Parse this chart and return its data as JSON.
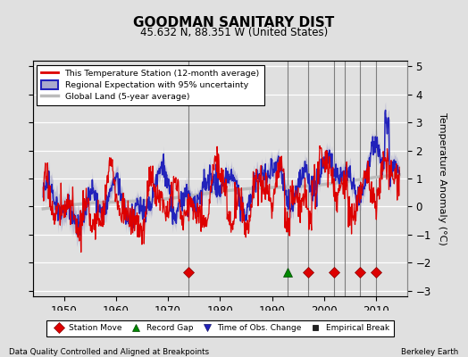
{
  "title": "GOODMAN SANITARY DIST",
  "subtitle": "45.632 N, 88.351 W (United States)",
  "ylabel": "Temperature Anomaly (°C)",
  "xlabel_left": "Data Quality Controlled and Aligned at Breakpoints",
  "xlabel_right": "Berkeley Earth",
  "ylim": [
    -3.2,
    5.2
  ],
  "xlim": [
    1944,
    2016
  ],
  "xticks": [
    1950,
    1960,
    1970,
    1980,
    1990,
    2000,
    2010
  ],
  "yticks": [
    -3,
    -2,
    -1,
    0,
    1,
    2,
    3,
    4,
    5
  ],
  "bg_color": "#e0e0e0",
  "plot_bg_color": "#e0e0e0",
  "grid_color": "#ffffff",
  "station_color": "#dd0000",
  "regional_color": "#2222bb",
  "regional_fill_color": "#aaaacc",
  "global_color": "#bbbbbb",
  "vline_color": "#666666",
  "vlines": [
    1974,
    1993,
    1997,
    2002,
    2004,
    2007,
    2010
  ],
  "station_moves": [
    1974,
    1997,
    2002,
    2007,
    2010
  ],
  "record_gaps": [
    1993
  ],
  "time_obs_changes": [],
  "empirical_breaks": [],
  "legend_entries": [
    "This Temperature Station (12-month average)",
    "Regional Expectation with 95% uncertainty",
    "Global Land (5-year average)"
  ],
  "bottom_legend": [
    "Station Move",
    "Record Gap",
    "Time of Obs. Change",
    "Empirical Break"
  ]
}
